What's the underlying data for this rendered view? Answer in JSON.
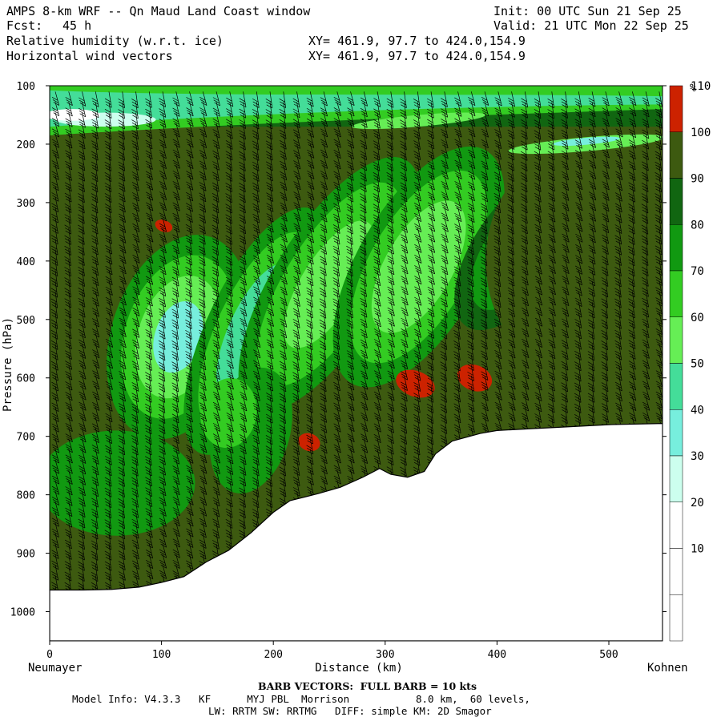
{
  "header": {
    "title": "AMPS 8-km WRF -- Qn Maud Land Coast window",
    "init": "Init: 00 UTC Sun 21 Sep 25",
    "fcst_label": "Fcst:",
    "fcst_value": "45 h",
    "valid": "Valid: 21 UTC Mon 22 Sep 25",
    "field1": "Relative humidity (w.r.t. ice)",
    "field1_xy": "XY= 461.9, 97.7 to 424.0,154.9",
    "field2": "Horizontal wind vectors",
    "field2_xy": "XY= 461.9, 97.7 to 424.0,154.9"
  },
  "colors": {
    "bg": "#ffffff",
    "c30_40": "#ccffee",
    "c40_50": "#77eedd",
    "c50_60": "#44dd99",
    "c60_70": "#66ee55",
    "c70_80": "#33cc22",
    "c80_90": "#119911",
    "c90_100": "#116611",
    "c100_110": "#3d5a10",
    "c110p": "#cc2200"
  },
  "chart_data": {
    "type": "heatmap",
    "title": "Relative humidity (w.r.t. ice) cross-section with horizontal wind vectors",
    "xlabel": "Distance (km)",
    "ylabel": "Pressure (hPa)",
    "xlim": [
      0,
      548
    ],
    "ylim": [
      1050,
      100
    ],
    "x_ticks": [
      0,
      100,
      200,
      300,
      400,
      500
    ],
    "y_ticks": [
      100,
      200,
      300,
      400,
      500,
      600,
      700,
      800,
      900,
      1000
    ],
    "left_endpoint": "Neumayer",
    "right_endpoint": "Kohnen",
    "colorbar_unit": "%",
    "colorbar_levels": [
      10,
      20,
      30,
      40,
      50,
      60,
      70,
      80,
      90,
      100,
      110
    ],
    "terrain_surface": [
      {
        "x": 0,
        "p": 963
      },
      {
        "x": 30,
        "p": 963
      },
      {
        "x": 55,
        "p": 962
      },
      {
        "x": 80,
        "p": 958
      },
      {
        "x": 100,
        "p": 950
      },
      {
        "x": 120,
        "p": 940
      },
      {
        "x": 140,
        "p": 915
      },
      {
        "x": 160,
        "p": 895
      },
      {
        "x": 180,
        "p": 865
      },
      {
        "x": 200,
        "p": 830
      },
      {
        "x": 215,
        "p": 810
      },
      {
        "x": 240,
        "p": 798
      },
      {
        "x": 260,
        "p": 787
      },
      {
        "x": 280,
        "p": 770
      },
      {
        "x": 295,
        "p": 755
      },
      {
        "x": 305,
        "p": 765
      },
      {
        "x": 320,
        "p": 770
      },
      {
        "x": 335,
        "p": 760
      },
      {
        "x": 345,
        "p": 730
      },
      {
        "x": 360,
        "p": 708
      },
      {
        "x": 385,
        "p": 695
      },
      {
        "x": 400,
        "p": 690
      },
      {
        "x": 450,
        "p": 685
      },
      {
        "x": 500,
        "p": 680
      },
      {
        "x": 548,
        "p": 678
      }
    ],
    "rh_features": [
      {
        "kind": "background",
        "rh": 105
      },
      {
        "kind": "moist_band_top",
        "x0": 0,
        "x1": 548,
        "p_top": 100,
        "p_bottom": 200,
        "rh": 50
      },
      {
        "kind": "dry_tongue",
        "x_center": 110,
        "p_center": 500,
        "rh": 45
      },
      {
        "kind": "dry_tongue",
        "x_center": 180,
        "p_center": 480,
        "rh": 60
      },
      {
        "kind": "dry_tongue",
        "x_center": 245,
        "p_center": 380,
        "rh": 65
      },
      {
        "kind": "dry_tongue",
        "x_center": 330,
        "p_center": 340,
        "rh": 65
      },
      {
        "kind": "supersaturated",
        "x_center": 102,
        "p_center": 340,
        "rh": 112
      },
      {
        "kind": "supersaturated",
        "x_center": 327,
        "p_center": 610,
        "rh": 112
      },
      {
        "kind": "supersaturated",
        "x_center": 380,
        "p_center": 600,
        "rh": 112
      },
      {
        "kind": "supersaturated",
        "x_center": 232,
        "p_center": 710,
        "rh": 112
      }
    ]
  },
  "footer": {
    "barb_note": "BARB VECTORS:  FULL BARB = 10 kts",
    "model_line1": "Model Info: V4.3.3   KF      MYJ PBL  Morrison           8.0 km,  60 levels,",
    "model_line2": "LW: RRTM SW: RRTMG   DIFF: simple KM: 2D Smagor"
  }
}
